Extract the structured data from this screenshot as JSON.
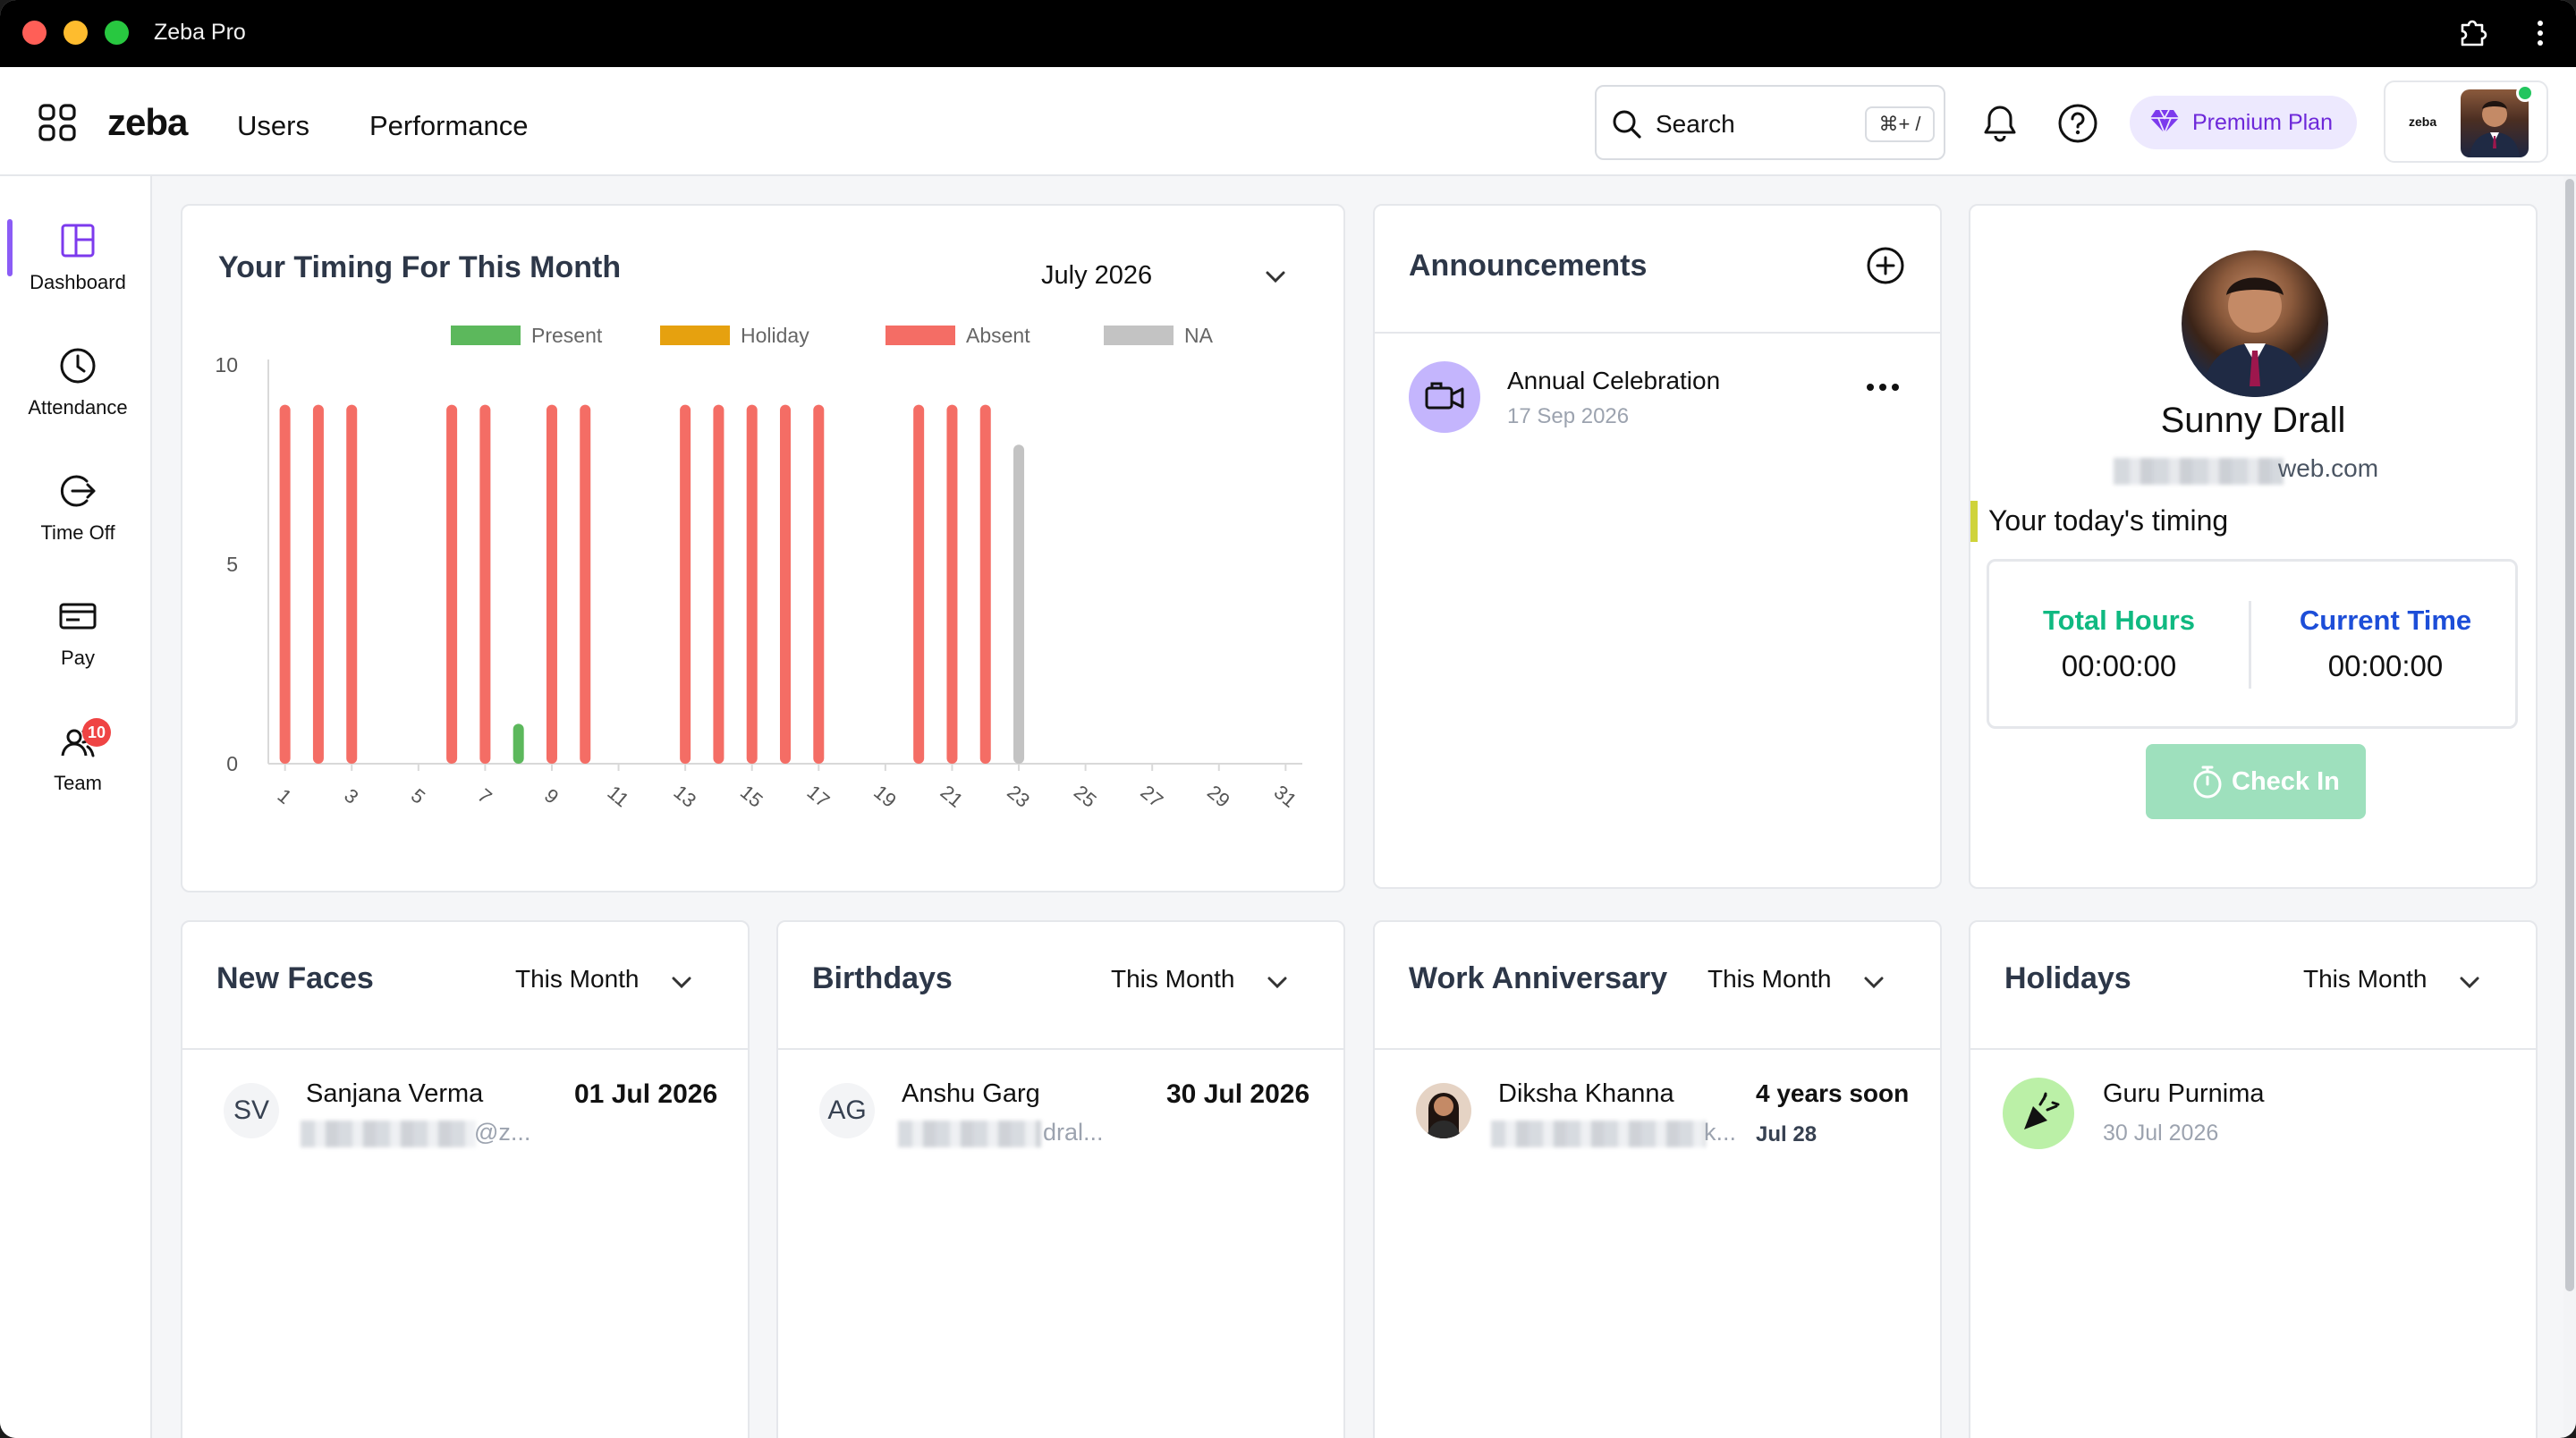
{
  "window": {
    "title": "Zeba Pro"
  },
  "header": {
    "logo": "zeba",
    "nav": [
      "Users",
      "Performance"
    ],
    "search": {
      "label": "Search",
      "shortcut": "⌘+ /"
    },
    "premium_label": "Premium Plan",
    "account_logo": "zeba"
  },
  "sidebar": {
    "items": [
      {
        "label": "Dashboard",
        "icon": "dashboard-icon",
        "active": true
      },
      {
        "label": "Attendance",
        "icon": "clock-icon"
      },
      {
        "label": "Time Off",
        "icon": "time-off-icon"
      },
      {
        "label": "Pay",
        "icon": "pay-card-icon"
      },
      {
        "label": "Team",
        "icon": "team-icon",
        "badge": "10"
      }
    ]
  },
  "timing": {
    "title": "Your Timing For This Month",
    "month": "July 2026"
  },
  "chart_data": {
    "type": "bar",
    "title": "",
    "xlabel": "",
    "ylabel": "",
    "ylim": [
      0,
      10
    ],
    "yticks": [
      "0",
      "5",
      "10"
    ],
    "xticks": [
      "1",
      "3",
      "5",
      "7",
      "9",
      "11",
      "13",
      "15",
      "17",
      "19",
      "21",
      "23",
      "25",
      "27",
      "29",
      "31"
    ],
    "legend": [
      {
        "name": "Present",
        "color": "#5cb85c"
      },
      {
        "name": "Holiday",
        "color": "#e6a10f"
      },
      {
        "name": "Absent",
        "color": "#f46d65"
      },
      {
        "name": "NA",
        "color": "#c3c3c3"
      }
    ],
    "legend_position": "top",
    "bars": [
      {
        "day": 1,
        "value": 9,
        "series": "Absent"
      },
      {
        "day": 2,
        "value": 9,
        "series": "Absent"
      },
      {
        "day": 3,
        "value": 9,
        "series": "Absent"
      },
      {
        "day": 6,
        "value": 9,
        "series": "Absent"
      },
      {
        "day": 7,
        "value": 9,
        "series": "Absent"
      },
      {
        "day": 8,
        "value": 1,
        "series": "Present"
      },
      {
        "day": 9,
        "value": 9,
        "series": "Absent"
      },
      {
        "day": 10,
        "value": 9,
        "series": "Absent"
      },
      {
        "day": 13,
        "value": 9,
        "series": "Absent"
      },
      {
        "day": 14,
        "value": 9,
        "series": "Absent"
      },
      {
        "day": 15,
        "value": 9,
        "series": "Absent"
      },
      {
        "day": 16,
        "value": 9,
        "series": "Absent"
      },
      {
        "day": 17,
        "value": 9,
        "series": "Absent"
      },
      {
        "day": 20,
        "value": 9,
        "series": "Absent"
      },
      {
        "day": 21,
        "value": 9,
        "series": "Absent"
      },
      {
        "day": 22,
        "value": 9,
        "series": "Absent"
      },
      {
        "day": 23,
        "value": 8,
        "series": "NA"
      }
    ]
  },
  "announcements": {
    "title": "Announcements",
    "items": [
      {
        "title": "Annual Celebration",
        "date": "17 Sep 2026"
      }
    ]
  },
  "profile": {
    "name": "Sunny Drall",
    "email_visible": "web.com",
    "today_label": "Your today's timing",
    "total_hours_label": "Total Hours",
    "total_hours": "00:00:00",
    "current_time_label": "Current Time",
    "current_time": "00:00:00",
    "checkin_label": "Check In",
    "colors": {
      "total": "#10b981",
      "current": "#1d4ed8"
    }
  },
  "new_faces": {
    "title": "New Faces",
    "filter": "This Month",
    "items": [
      {
        "initials": "SV",
        "name": "Sanjana Verma",
        "email_tail": "@z...",
        "date": "01 Jul 2026"
      }
    ]
  },
  "birthdays": {
    "title": "Birthdays",
    "filter": "This Month",
    "items": [
      {
        "initials": "AG",
        "name": "Anshu Garg",
        "email_tail": "dral...",
        "date": "30 Jul 2026"
      }
    ]
  },
  "anniversary": {
    "title": "Work Anniversary",
    "filter": "This Month",
    "items": [
      {
        "name": "Diksha Khanna",
        "email_tail": "k...",
        "years": "4 years soon",
        "date": "Jul 28"
      }
    ]
  },
  "holidays": {
    "title": "Holidays",
    "filter": "This Month",
    "items": [
      {
        "name": "Guru Purnima",
        "date": "30 Jul 2026"
      }
    ]
  }
}
